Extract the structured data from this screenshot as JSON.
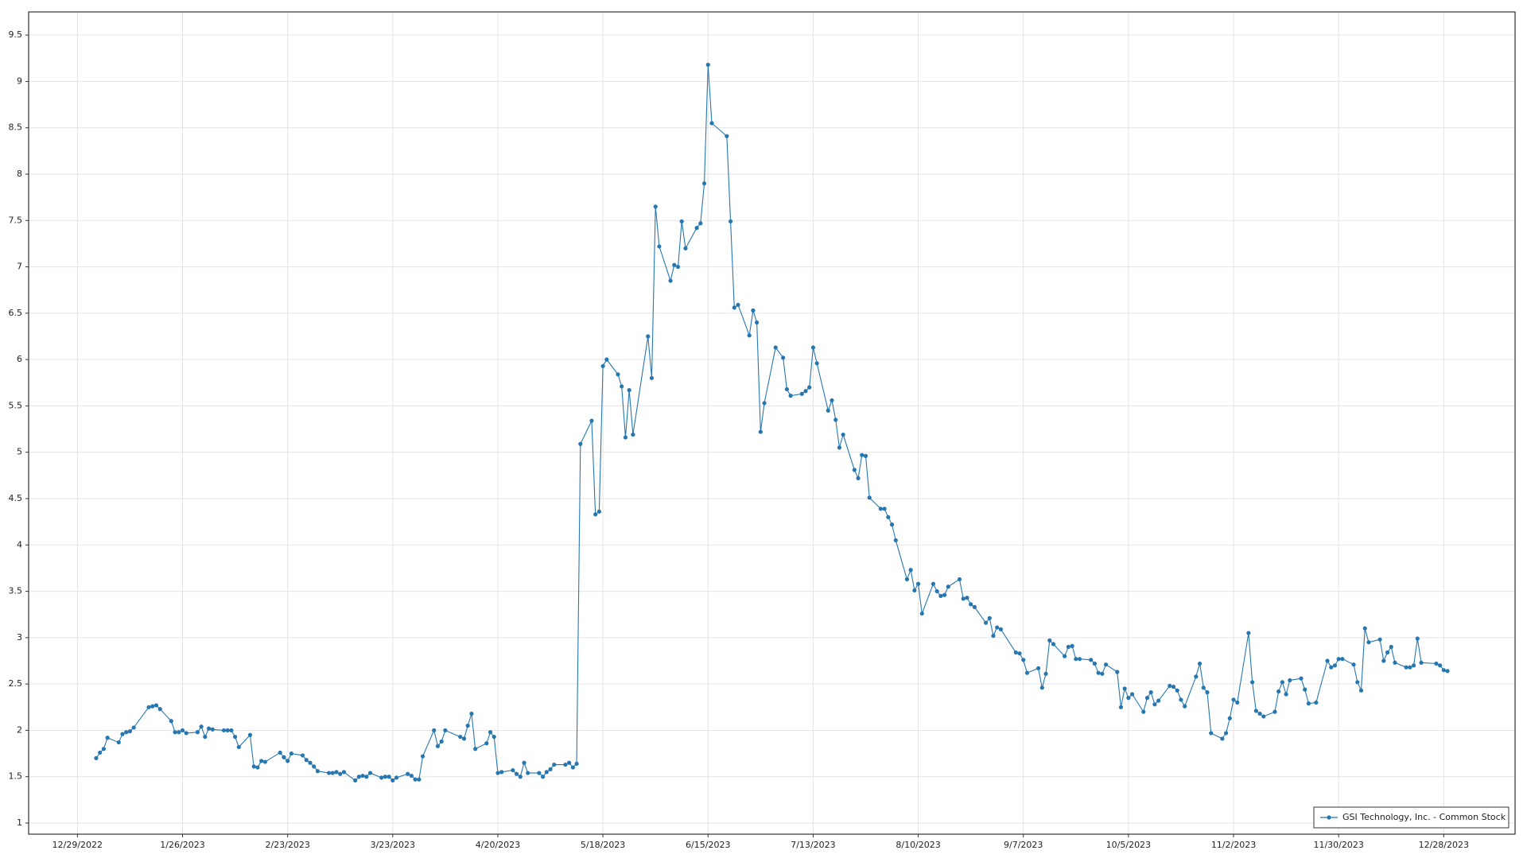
{
  "chart_data": {
    "type": "line",
    "xlim": [
      "12/16/2022",
      "1/16/2024"
    ],
    "xticks": [
      "12/29/2022",
      "1/26/2023",
      "2/23/2023",
      "3/23/2023",
      "4/20/2023",
      "5/18/2023",
      "6/15/2023",
      "7/13/2023",
      "8/10/2023",
      "9/7/2023",
      "10/5/2023",
      "11/2/2023",
      "11/30/2023",
      "12/28/2023"
    ],
    "ylim": [
      0.88,
      9.75
    ],
    "yticks": [
      1,
      1.5,
      2,
      2.5,
      3,
      3.5,
      4,
      4.5,
      5,
      5.5,
      6,
      6.5,
      7,
      7.5,
      8,
      8.5,
      9,
      9.5
    ],
    "grid": true,
    "legend": "lower right",
    "x": [
      "1/3/2023",
      "1/4/2023",
      "1/5/2023",
      "1/6/2023",
      "1/9/2023",
      "1/10/2023",
      "1/11/2023",
      "1/12/2023",
      "1/13/2023",
      "1/17/2023",
      "1/18/2023",
      "1/19/2023",
      "1/20/2023",
      "1/23/2023",
      "1/24/2023",
      "1/25/2023",
      "1/26/2023",
      "1/27/2023",
      "1/30/2023",
      "1/31/2023",
      "2/1/2023",
      "2/2/2023",
      "2/3/2023",
      "2/6/2023",
      "2/7/2023",
      "2/8/2023",
      "2/9/2023",
      "2/10/2023",
      "2/13/2023",
      "2/14/2023",
      "2/15/2023",
      "2/16/2023",
      "2/17/2023",
      "2/21/2023",
      "2/22/2023",
      "2/23/2023",
      "2/24/2023",
      "2/27/2023",
      "2/28/2023",
      "3/1/2023",
      "3/2/2023",
      "3/3/2023",
      "3/6/2023",
      "3/7/2023",
      "3/8/2023",
      "3/9/2023",
      "3/10/2023",
      "3/13/2023",
      "3/14/2023",
      "3/15/2023",
      "3/16/2023",
      "3/17/2023",
      "3/20/2023",
      "3/21/2023",
      "3/22/2023",
      "3/23/2023",
      "3/24/2023",
      "3/27/2023",
      "3/28/2023",
      "3/29/2023",
      "3/30/2023",
      "3/31/2023",
      "4/3/2023",
      "4/4/2023",
      "4/5/2023",
      "4/6/2023",
      "4/10/2023",
      "4/11/2023",
      "4/12/2023",
      "4/13/2023",
      "4/14/2023",
      "4/17/2023",
      "4/18/2023",
      "4/19/2023",
      "4/20/2023",
      "4/21/2023",
      "4/24/2023",
      "4/25/2023",
      "4/26/2023",
      "4/27/2023",
      "4/28/2023",
      "5/1/2023",
      "5/2/2023",
      "5/3/2023",
      "5/4/2023",
      "5/5/2023",
      "5/8/2023",
      "5/9/2023",
      "5/10/2023",
      "5/11/2023",
      "5/12/2023",
      "5/15/2023",
      "5/16/2023",
      "5/17/2023",
      "5/18/2023",
      "5/19/2023",
      "5/22/2023",
      "5/23/2023",
      "5/24/2023",
      "5/25/2023",
      "5/26/2023",
      "5/30/2023",
      "5/31/2023",
      "6/1/2023",
      "6/2/2023",
      "6/5/2023",
      "6/6/2023",
      "6/7/2023",
      "6/8/2023",
      "6/9/2023",
      "6/12/2023",
      "6/13/2023",
      "6/14/2023",
      "6/15/2023",
      "6/16/2023",
      "6/20/2023",
      "6/21/2023",
      "6/22/2023",
      "6/23/2023",
      "6/26/2023",
      "6/27/2023",
      "6/28/2023",
      "6/29/2023",
      "6/30/2023",
      "7/3/2023",
      "7/5/2023",
      "7/6/2023",
      "7/7/2023",
      "7/10/2023",
      "7/11/2023",
      "7/12/2023",
      "7/13/2023",
      "7/14/2023",
      "7/17/2023",
      "7/18/2023",
      "7/19/2023",
      "7/20/2023",
      "7/21/2023",
      "7/24/2023",
      "7/25/2023",
      "7/26/2023",
      "7/27/2023",
      "7/28/2023",
      "7/31/2023",
      "8/1/2023",
      "8/2/2023",
      "8/3/2023",
      "8/4/2023",
      "8/7/2023",
      "8/8/2023",
      "8/9/2023",
      "8/10/2023",
      "8/11/2023",
      "8/14/2023",
      "8/15/2023",
      "8/16/2023",
      "8/17/2023",
      "8/18/2023",
      "8/21/2023",
      "8/22/2023",
      "8/23/2023",
      "8/24/2023",
      "8/25/2023",
      "8/28/2023",
      "8/29/2023",
      "8/30/2023",
      "8/31/2023",
      "9/1/2023",
      "9/5/2023",
      "9/6/2023",
      "9/7/2023",
      "9/8/2023",
      "9/11/2023",
      "9/12/2023",
      "9/13/2023",
      "9/14/2023",
      "9/15/2023",
      "9/18/2023",
      "9/19/2023",
      "9/20/2023",
      "9/21/2023",
      "9/22/2023",
      "9/25/2023",
      "9/26/2023",
      "9/27/2023",
      "9/28/2023",
      "9/29/2023",
      "10/2/2023",
      "10/3/2023",
      "10/4/2023",
      "10/5/2023",
      "10/6/2023",
      "10/9/2023",
      "10/10/2023",
      "10/11/2023",
      "10/12/2023",
      "10/13/2023",
      "10/16/2023",
      "10/17/2023",
      "10/18/2023",
      "10/19/2023",
      "10/20/2023",
      "10/23/2023",
      "10/24/2023",
      "10/25/2023",
      "10/26/2023",
      "10/27/2023",
      "10/30/2023",
      "10/31/2023",
      "11/1/2023",
      "11/2/2023",
      "11/3/2023",
      "11/6/2023",
      "11/7/2023",
      "11/8/2023",
      "11/9/2023",
      "11/10/2023",
      "11/13/2023",
      "11/14/2023",
      "11/15/2023",
      "11/16/2023",
      "11/17/2023",
      "11/20/2023",
      "11/21/2023",
      "11/22/2023",
      "11/24/2023",
      "11/27/2023",
      "11/28/2023",
      "11/29/2023",
      "11/30/2023",
      "12/1/2023",
      "12/4/2023",
      "12/5/2023",
      "12/6/2023",
      "12/7/2023",
      "12/8/2023",
      "12/11/2023",
      "12/12/2023",
      "12/13/2023",
      "12/14/2023",
      "12/15/2023",
      "12/18/2023",
      "12/19/2023",
      "12/20/2023",
      "12/21/2023",
      "12/22/2023",
      "12/26/2023",
      "12/27/2023",
      "12/28/2023",
      "12/29/2023"
    ],
    "series": [
      {
        "name": "GSI Technology, Inc. - Common Stock",
        "color": "#2677b0",
        "values": [
          1.7,
          1.76,
          1.8,
          1.92,
          1.87,
          1.96,
          1.98,
          1.99,
          2.03,
          2.25,
          2.26,
          2.27,
          2.23,
          2.1,
          1.98,
          1.98,
          2.0,
          1.97,
          1.98,
          2.04,
          1.93,
          2.02,
          2.01,
          2.0,
          2.0,
          2.0,
          1.93,
          1.82,
          1.95,
          1.61,
          1.6,
          1.67,
          1.66,
          1.76,
          1.71,
          1.67,
          1.75,
          1.73,
          1.68,
          1.65,
          1.61,
          1.56,
          1.54,
          1.54,
          1.55,
          1.53,
          1.55,
          1.46,
          1.5,
          1.51,
          1.5,
          1.54,
          1.49,
          1.5,
          1.5,
          1.46,
          1.49,
          1.53,
          1.51,
          1.47,
          1.47,
          1.72,
          2.0,
          1.83,
          1.88,
          2.0,
          1.93,
          1.91,
          2.05,
          2.18,
          1.8,
          1.86,
          1.98,
          1.93,
          1.54,
          1.55,
          1.57,
          1.53,
          1.5,
          1.65,
          1.54,
          1.54,
          1.5,
          1.55,
          1.58,
          1.63,
          1.63,
          1.65,
          1.6,
          1.64,
          5.09,
          5.34,
          4.33,
          4.36,
          5.93,
          6.0,
          5.84,
          5.71,
          5.16,
          5.67,
          5.19,
          6.25,
          5.8,
          7.65,
          7.22,
          6.85,
          7.02,
          7.0,
          7.49,
          7.2,
          7.42,
          7.47,
          7.9,
          9.18,
          8.55,
          8.41,
          7.49,
          6.56,
          6.59,
          6.26,
          6.53,
          6.4,
          5.22,
          5.53,
          6.13,
          6.02,
          5.68,
          5.61,
          5.63,
          5.66,
          5.7,
          6.13,
          5.96,
          5.45,
          5.56,
          5.35,
          5.05,
          5.19,
          4.81,
          4.72,
          4.97,
          4.96,
          4.51,
          4.39,
          4.39,
          4.3,
          4.22,
          4.05,
          3.63,
          3.73,
          3.51,
          3.58,
          3.26,
          3.58,
          3.5,
          3.45,
          3.46,
          3.55,
          3.63,
          3.42,
          3.43,
          3.36,
          3.33,
          3.16,
          3.21,
          3.02,
          3.11,
          3.09,
          2.84,
          2.83,
          2.76,
          2.62,
          2.67,
          2.46,
          2.61,
          2.97,
          2.93,
          2.8,
          2.9,
          2.91,
          2.77,
          2.77,
          2.76,
          2.72,
          2.62,
          2.61,
          2.71,
          2.63,
          2.25,
          2.45,
          2.35,
          2.39,
          2.2,
          2.35,
          2.41,
          2.28,
          2.32,
          2.48,
          2.47,
          2.43,
          2.33,
          2.26,
          2.58,
          2.72,
          2.46,
          2.41,
          1.97,
          1.91,
          1.97,
          2.13,
          2.33,
          2.3,
          3.05,
          2.52,
          2.21,
          2.18,
          2.15,
          2.2,
          2.42,
          2.52,
          2.39,
          2.54,
          2.56,
          2.44,
          2.29,
          2.3,
          2.75,
          2.68,
          2.7,
          2.77,
          2.77,
          2.71,
          2.52,
          2.43,
          3.1,
          2.95,
          2.98,
          2.75,
          2.84,
          2.9,
          2.73,
          2.68,
          2.68,
          2.7,
          2.99,
          2.73,
          2.72,
          2.7,
          2.65,
          2.64
        ]
      }
    ]
  }
}
